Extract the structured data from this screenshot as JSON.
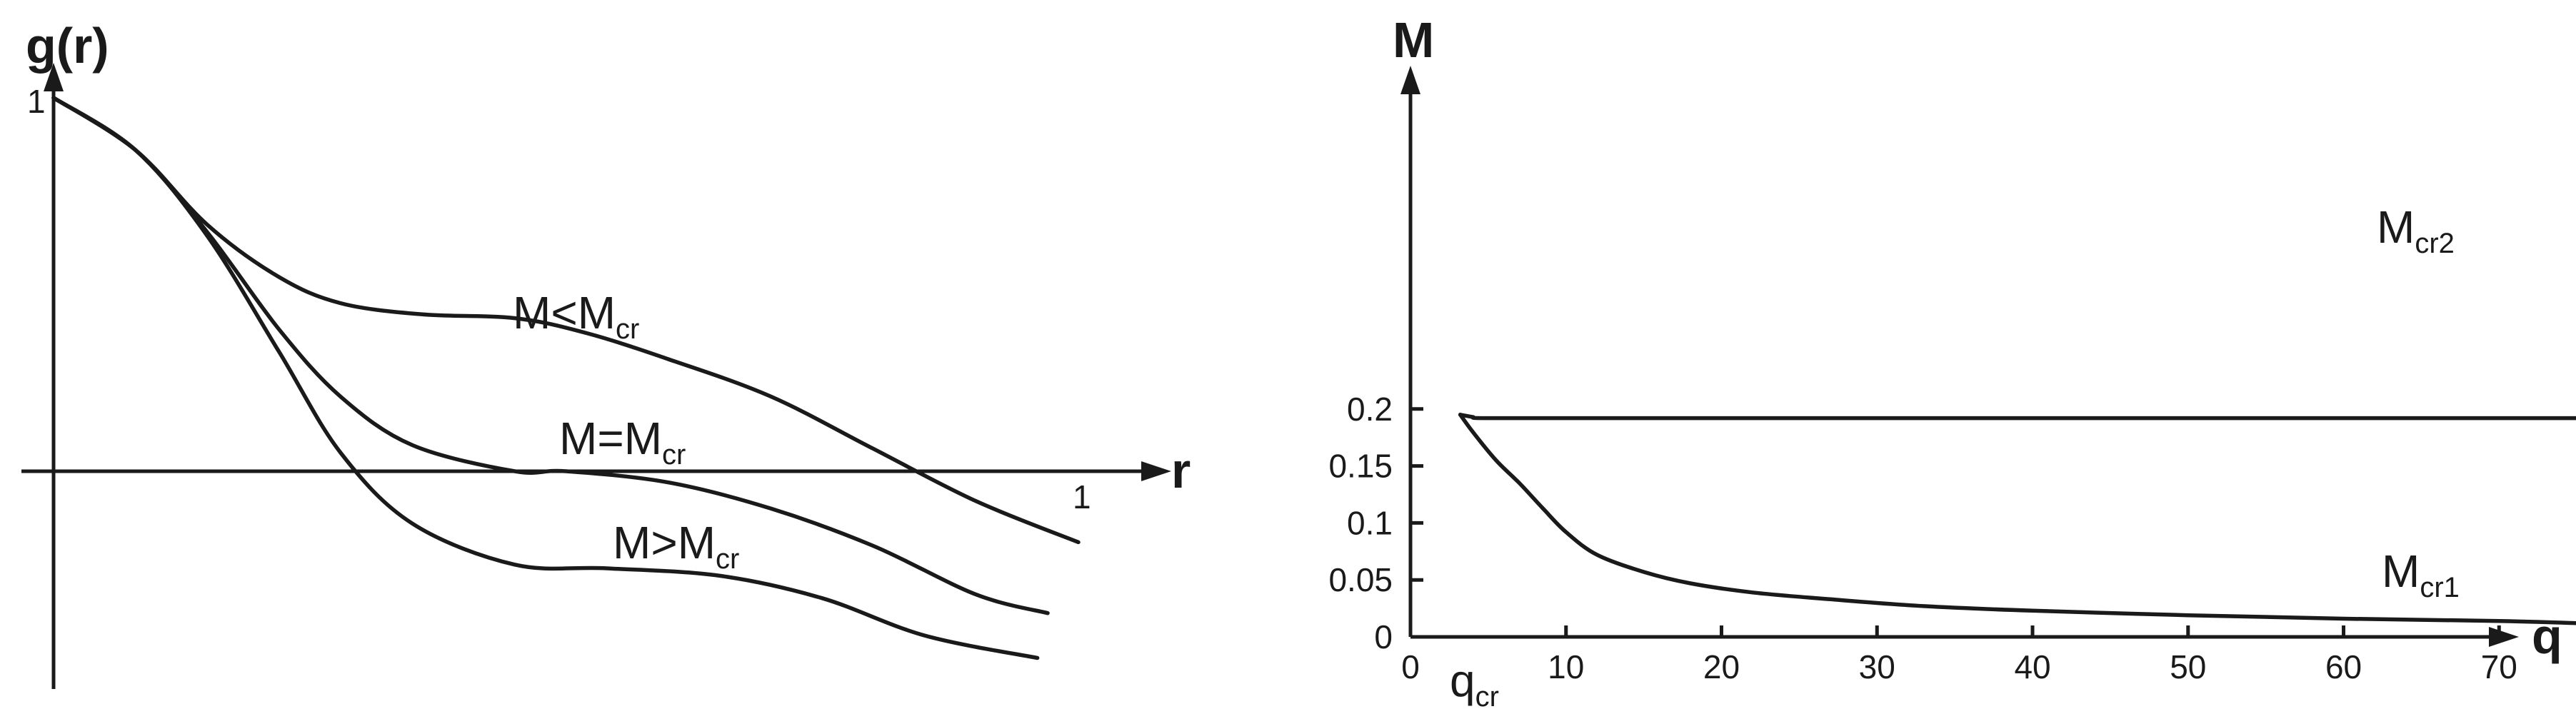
{
  "chart_data": [
    {
      "type": "line",
      "ylabel": "g(r)",
      "xlabel": "r",
      "y_tick_labels": [
        "1"
      ],
      "x_tick_labels": [
        "1"
      ],
      "series": [
        {
          "name": "M<M",
          "name_sub": "cr",
          "x": [
            0,
            0.08,
            0.15,
            0.22,
            0.28,
            0.36,
            0.45,
            0.52,
            0.6,
            0.7,
            0.8,
            0.9,
            1.0
          ],
          "y": [
            1.0,
            0.86,
            0.66,
            0.52,
            0.45,
            0.42,
            0.41,
            0.37,
            0.3,
            0.2,
            0.06,
            -0.08,
            -0.19
          ]
        },
        {
          "name": "M=M",
          "name_sub": "cr",
          "x": [
            0,
            0.08,
            0.15,
            0.22,
            0.28,
            0.35,
            0.45,
            0.5,
            0.6,
            0.7,
            0.8,
            0.9,
            0.97
          ],
          "y": [
            1.0,
            0.86,
            0.64,
            0.38,
            0.2,
            0.07,
            0.0,
            0.0,
            -0.03,
            -0.1,
            -0.2,
            -0.33,
            -0.38
          ]
        },
        {
          "name": "M>M",
          "name_sub": "cr",
          "x": [
            0,
            0.08,
            0.15,
            0.22,
            0.28,
            0.35,
            0.45,
            0.54,
            0.65,
            0.75,
            0.85,
            0.96
          ],
          "y": [
            1.0,
            0.86,
            0.63,
            0.32,
            0.05,
            -0.14,
            -0.25,
            -0.26,
            -0.28,
            -0.34,
            -0.44,
            -0.5
          ]
        }
      ]
    },
    {
      "type": "line",
      "ylabel": "M",
      "xlabel": "q",
      "xlim": [
        0,
        82
      ],
      "ylim": [
        0,
        0.23
      ],
      "x_ticks": [
        0,
        10,
        20,
        30,
        40,
        50,
        60,
        70
      ],
      "y_ticks": [
        0,
        0.05,
        0.1,
        0.15,
        0.2
      ],
      "x_tick_labels": [
        "0",
        "10",
        "20",
        "30",
        "40",
        "50",
        "60",
        "70"
      ],
      "y_tick_labels": [
        "0",
        "0.05",
        "0.1",
        "0.15",
        "0.2"
      ],
      "annotation": {
        "text": "q",
        "sub": "cr"
      },
      "series": [
        {
          "name": "M",
          "name_sub": "cr2",
          "x": [
            3.2,
            4.0,
            4.6,
            10,
            20,
            40,
            60,
            75
          ],
          "y": [
            0.195,
            0.193,
            0.192,
            0.192,
            0.192,
            0.192,
            0.192,
            0.192
          ]
        },
        {
          "name": "M",
          "name_sub": "cr1",
          "x": [
            3.2,
            4.0,
            5.5,
            7.0,
            8.5,
            10.0,
            12.0,
            15.0,
            18.0,
            22.0,
            27.0,
            33.0,
            40.0,
            50.0,
            60.0,
            70.0,
            75.0
          ],
          "y": [
            0.195,
            0.18,
            0.155,
            0.135,
            0.113,
            0.092,
            0.072,
            0.057,
            0.047,
            0.039,
            0.033,
            0.027,
            0.023,
            0.019,
            0.016,
            0.014,
            0.012
          ]
        }
      ]
    }
  ]
}
